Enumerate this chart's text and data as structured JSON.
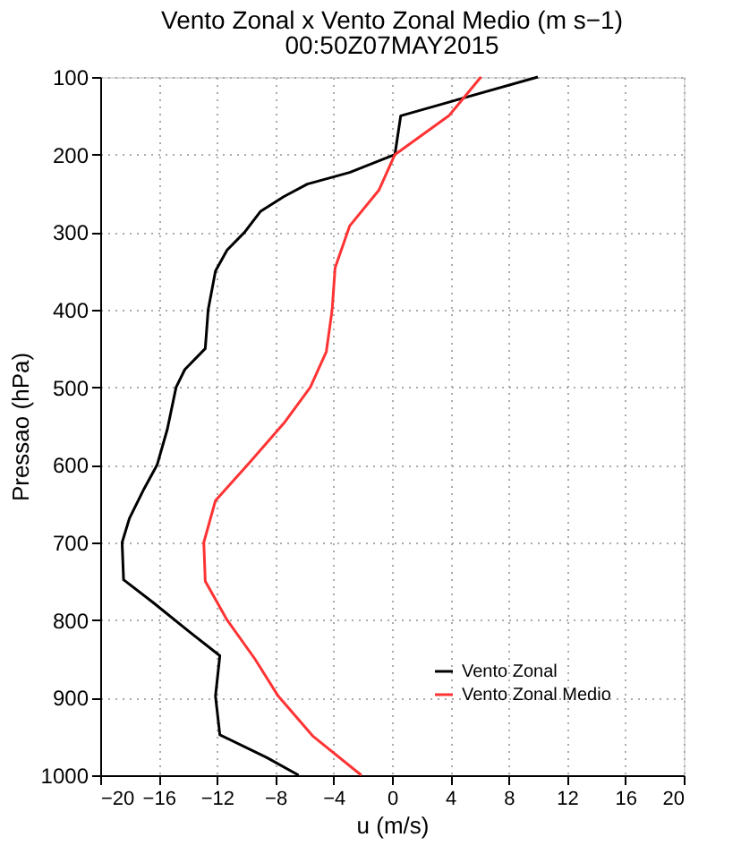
{
  "chart_data": {
    "type": "line",
    "title": "Vento Zonal x Vento Zonal Medio (m s−1)",
    "subtitle": "00:50Z07MAY2015",
    "xlabel": "u (m/s)",
    "ylabel": "Pressao (hPa)",
    "xlim": [
      -20,
      20
    ],
    "xticks": [
      -20,
      -16,
      -12,
      -8,
      -4,
      0,
      4,
      8,
      12,
      16,
      20
    ],
    "ylim": [
      1000,
      100
    ],
    "yticks": [
      100,
      200,
      300,
      400,
      500,
      600,
      700,
      800,
      900,
      1000
    ],
    "grid": true,
    "legend": "bottom right",
    "line_style": "solid",
    "marker": "none",
    "series": [
      {
        "name": "Vento Zonal",
        "color": "#000000",
        "x": [
          10.0,
          0.6,
          0.2,
          -2.9,
          -5.8,
          -7.4,
          -9.0,
          -10.1,
          -11.3,
          -12.1,
          -12.6,
          -12.8,
          -14.2,
          -14.8,
          -15.4,
          -16.1,
          -17.0,
          -18.0,
          -18.5,
          -18.4,
          -16.4,
          -13.9,
          -11.8,
          -12.1,
          -11.8,
          -8.6,
          -6.4
        ],
        "values": [
          100,
          150,
          200,
          223,
          238,
          254,
          273,
          300,
          323,
          350,
          400,
          450,
          477,
          500,
          554,
          600,
          631,
          669,
          700,
          748,
          777,
          815,
          846,
          898,
          948,
          977,
          1000
        ]
      },
      {
        "name": "Vento Zonal Medio",
        "color": "#ff3333",
        "x": [
          6.1,
          3.9,
          0.2,
          -0.9,
          -2.9,
          -3.9,
          -4.1,
          -4.5,
          -5.6,
          -7.4,
          -9.9,
          -12.1,
          -12.9,
          -12.8,
          -11.3,
          -9.4,
          -7.8,
          -5.4,
          -2.1
        ],
        "values": [
          100,
          150,
          200,
          246,
          292,
          346,
          400,
          454,
          500,
          546,
          600,
          646,
          700,
          750,
          800,
          850,
          898,
          950,
          1000
        ]
      }
    ]
  }
}
